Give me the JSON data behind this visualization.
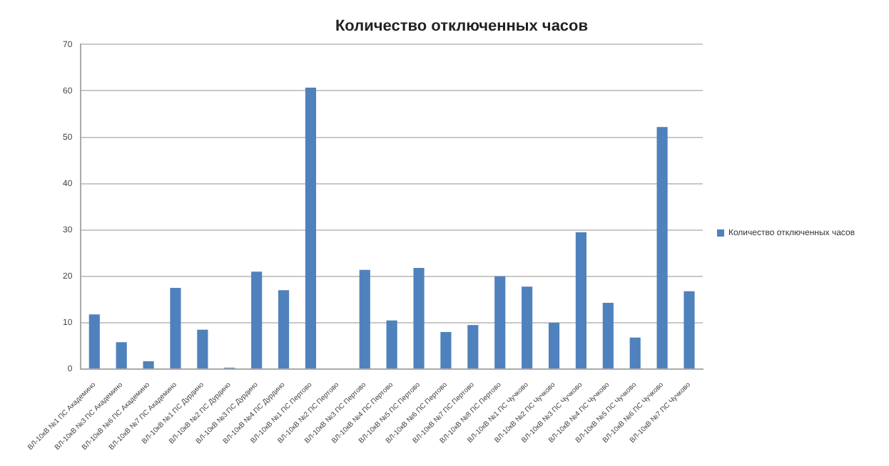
{
  "chart_data": {
    "type": "bar",
    "title": "Количество отключенных часов",
    "categories": [
      "ВЛ-10кВ №1 ПС Академино",
      "ВЛ-10кВ №3 ПС Академино",
      "ВЛ-10кВ №6 ПС Академино",
      "ВЛ-10кВ №7 ПС Академино",
      "ВЛ-10кВ №1 ПС Дурдино",
      "ВЛ-10кВ №2 ПС Дурдино",
      "ВЛ-10кВ №3 ПС Дурдино",
      "ВЛ-10кВ №4 ПС Дурдино",
      "ВЛ-10кВ №1 ПС Пертово",
      "ВЛ-10кВ №2 ПС Пертово",
      "ВЛ-10кВ №3 ПС Пертово",
      "ВЛ-10кВ №4 ПС Пертово",
      "ВЛ-10кВ №5 ПС Пертово",
      "ВЛ-10кВ №6 ПС Пертово",
      "ВЛ-10кВ №7 ПС Пертово",
      "ВЛ-10кВ №8 ПС Пертово",
      "ВЛ-10кВ №1 ПС Чучково",
      "ВЛ-10кВ №2 ПС Чучково",
      "ВЛ-10кВ №3 ПС Чучково",
      "ВЛ-10кВ №4 ПС Чучково",
      "ВЛ-10кВ №5 ПС Чучково",
      "ВЛ-10кВ №6 ПС Чучково",
      "ВЛ-10кВ №7 ПС Чучково"
    ],
    "series": [
      {
        "name": "Количество отключенных часов",
        "color": "#4f81bd",
        "values": [
          11.8,
          5.8,
          1.7,
          17.5,
          8.5,
          0.3,
          21,
          17,
          60.7,
          0,
          21.4,
          10.5,
          21.8,
          8,
          9.5,
          20,
          17.8,
          10,
          29.5,
          14.3,
          6.8,
          52.2,
          16.8
        ]
      }
    ],
    "ylim": [
      0,
      70
    ],
    "yticks": [
      0,
      10,
      20,
      30,
      40,
      50,
      60,
      70
    ],
    "grid": "y",
    "legend": "right"
  }
}
